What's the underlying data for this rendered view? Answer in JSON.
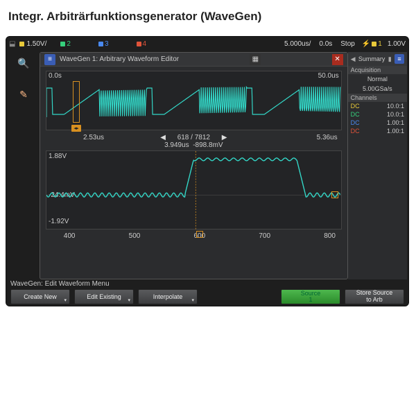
{
  "page": {
    "heading": "Integr. Arbiträrfunktionsgenerator (WaveGen)"
  },
  "topbar": {
    "ch1": {
      "num": "1",
      "scale": "1.50V/",
      "color": "#e8c93a"
    },
    "ch2": {
      "num": "2",
      "color": "#36d07c"
    },
    "ch3": {
      "num": "3",
      "color": "#4a8af0"
    },
    "ch4": {
      "num": "4",
      "color": "#e0533a"
    },
    "timebase": "5.000us/",
    "delay": "0.0s",
    "mode": "Stop",
    "trigger": {
      "ch_num": "1",
      "level": "1.00V",
      "color": "#e8c93a"
    }
  },
  "editor": {
    "title": "WaveGen 1: Arbitrary Waveform Editor",
    "overview": {
      "t_start": "0.0s",
      "t_end": "50.0us",
      "cursor_left_pct": 9,
      "cursor_width_pct": 3,
      "wave_color": "#33d8c8"
    },
    "status": {
      "index": "618 / 7812",
      "zoom_start": "2.53us",
      "zoom_end": "5.36us",
      "center_t": "3.949us",
      "center_v": "-898.8mV"
    },
    "detail": {
      "vmax_label": "1.88V",
      "vmid_label": "-24.4mV",
      "vmin_label": "-1.92V",
      "sel_box_pct": 97,
      "wave_color": "#33d8c8",
      "xaxis_ticks": [
        "400",
        "500",
        "600",
        "700",
        "800"
      ],
      "xaxis_positions_pct": [
        8,
        30,
        52,
        74,
        96
      ],
      "select_marker_pct": 52
    }
  },
  "summary": {
    "head": "Summary",
    "acq_head": "Acquisition",
    "acq_mode": "Normal",
    "acq_rate": "5.00GSa/s",
    "ch_head": "Channels",
    "channels": [
      {
        "label": "DC",
        "val": "10.0:1",
        "color": "#e8c93a"
      },
      {
        "label": "DC",
        "val": "10.0:1",
        "color": "#36d07c"
      },
      {
        "label": "DC",
        "val": "1.00:1",
        "color": "#4a8af0"
      },
      {
        "label": "DC",
        "val": "1.00:1",
        "color": "#e0533a"
      }
    ]
  },
  "menu": {
    "breadcrumb": "WaveGen: Edit Waveform Menu",
    "buttons": {
      "create": "Create New",
      "edit": "Edit Existing",
      "interpolate": "Interpolate",
      "source": "Source",
      "source_num": "1",
      "store": "Store Source\nto Arb"
    }
  }
}
